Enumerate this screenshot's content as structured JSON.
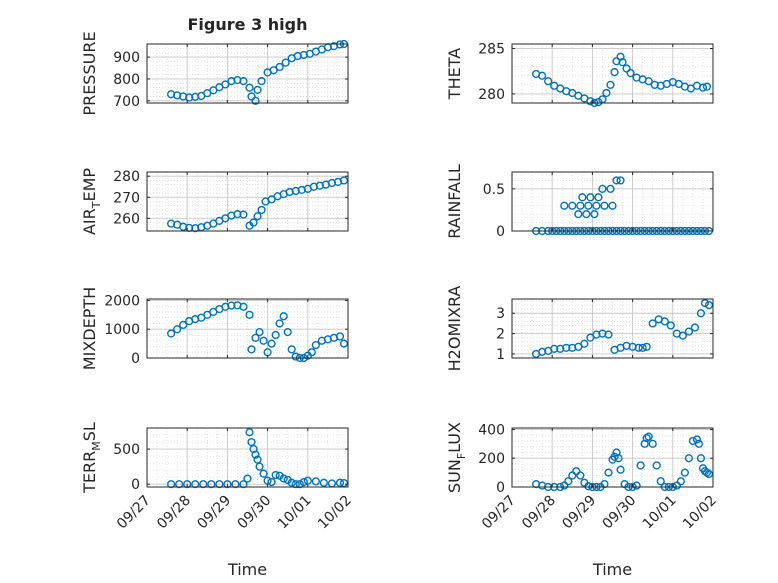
{
  "figure": {
    "title": "Figure 3 high",
    "x_label": "Time",
    "x_tick_labels": [
      "09/27",
      "09/28",
      "09/29",
      "09/30",
      "10/01",
      "10/02"
    ],
    "marker_color": "#0072BD",
    "grid_color": "#d9d9d9"
  },
  "chart_data": [
    {
      "type": "scatter",
      "title": "Figure 3 high",
      "ylabel": "PRESSURE",
      "xlim": [
        0,
        5
      ],
      "ylim": [
        690,
        960
      ],
      "yticks": [
        700,
        800,
        900
      ],
      "grid": true,
      "x": [
        0.6,
        0.75,
        0.9,
        1.05,
        1.2,
        1.35,
        1.5,
        1.65,
        1.8,
        1.95,
        2.1,
        2.25,
        2.4,
        2.55,
        2.6,
        2.7,
        2.75,
        2.85,
        3.0,
        3.15,
        3.3,
        3.45,
        3.6,
        3.75,
        3.9,
        4.05,
        4.2,
        4.35,
        4.5,
        4.65,
        4.8,
        4.9
      ],
      "y": [
        730,
        725,
        720,
        715,
        718,
        722,
        735,
        748,
        762,
        775,
        790,
        795,
        790,
        760,
        720,
        700,
        750,
        790,
        830,
        840,
        855,
        875,
        895,
        905,
        910,
        915,
        925,
        935,
        945,
        950,
        958,
        960
      ]
    },
    {
      "type": "scatter",
      "title": "",
      "ylabel": "THETA",
      "xlim": [
        0,
        5
      ],
      "ylim": [
        279,
        285.5
      ],
      "yticks": [
        280,
        285
      ],
      "grid": true,
      "x": [
        0.6,
        0.75,
        0.9,
        1.05,
        1.2,
        1.35,
        1.5,
        1.65,
        1.8,
        1.95,
        2.05,
        2.15,
        2.25,
        2.35,
        2.45,
        2.55,
        2.6,
        2.7,
        2.75,
        2.85,
        2.95,
        3.1,
        3.25,
        3.4,
        3.55,
        3.7,
        3.85,
        4.0,
        4.15,
        4.3,
        4.45,
        4.6,
        4.75,
        4.85
      ],
      "y": [
        282.2,
        282.0,
        281.4,
        280.9,
        280.6,
        280.3,
        280.1,
        279.8,
        279.5,
        279.2,
        279.0,
        279.1,
        279.4,
        280.1,
        281.0,
        282.4,
        283.6,
        284.1,
        283.5,
        282.8,
        282.3,
        281.8,
        281.6,
        281.4,
        281.0,
        280.9,
        281.1,
        281.3,
        281.1,
        280.8,
        280.6,
        280.9,
        280.7,
        280.8
      ]
    },
    {
      "type": "scatter",
      "title": "",
      "ylabel": "AIR_TEMP",
      "xlim": [
        0,
        5
      ],
      "ylim": [
        254,
        282
      ],
      "yticks": [
        260,
        270,
        280
      ],
      "grid": true,
      "x": [
        0.6,
        0.75,
        0.9,
        1.05,
        1.2,
        1.35,
        1.5,
        1.65,
        1.8,
        1.95,
        2.1,
        2.25,
        2.4,
        2.55,
        2.65,
        2.75,
        2.85,
        2.95,
        3.1,
        3.25,
        3.4,
        3.55,
        3.7,
        3.85,
        4.0,
        4.15,
        4.3,
        4.45,
        4.6,
        4.75,
        4.9
      ],
      "y": [
        257.5,
        257,
        256,
        255.5,
        255.3,
        255.8,
        256.5,
        257.5,
        258.8,
        260,
        261.3,
        262,
        261.8,
        256.5,
        258,
        261,
        264,
        268,
        269,
        270.5,
        271.5,
        272.5,
        273,
        273.5,
        274,
        275,
        275.5,
        276,
        276.8,
        277.3,
        278
      ]
    },
    {
      "type": "scatter",
      "title": "",
      "ylabel": "RAINFALL",
      "xlim": [
        0,
        5
      ],
      "ylim": [
        0,
        0.7
      ],
      "yticks": [
        0,
        0.5
      ],
      "grid": true,
      "x": [
        0.6,
        0.75,
        0.9,
        1.0,
        1.1,
        1.2,
        1.3,
        1.4,
        1.5,
        1.6,
        1.7,
        1.8,
        1.9,
        2.0,
        2.1,
        2.2,
        2.3,
        2.4,
        2.5,
        2.6,
        2.7,
        2.8,
        2.9,
        3.0,
        3.1,
        3.2,
        3.3,
        3.4,
        3.5,
        3.6,
        3.7,
        3.8,
        3.9,
        4.0,
        4.1,
        4.2,
        4.3,
        4.4,
        4.5,
        4.6,
        4.7,
        4.8,
        4.9,
        1.3,
        1.5,
        1.7,
        1.9,
        2.1,
        2.3,
        2.5,
        1.75,
        1.95,
        2.15,
        1.65,
        1.85,
        2.05,
        2.25,
        2.45,
        2.6,
        2.7
      ],
      "y": [
        0,
        0,
        0,
        0,
        0,
        0,
        0,
        0,
        0,
        0,
        0,
        0,
        0,
        0,
        0,
        0,
        0,
        0,
        0,
        0,
        0,
        0,
        0,
        0,
        0,
        0,
        0,
        0,
        0,
        0,
        0,
        0,
        0,
        0,
        0,
        0,
        0,
        0,
        0,
        0,
        0,
        0,
        0,
        0.3,
        0.3,
        0.3,
        0.3,
        0.3,
        0.3,
        0.3,
        0.4,
        0.4,
        0.4,
        0.2,
        0.2,
        0.2,
        0.5,
        0.5,
        0.6,
        0.6
      ]
    },
    {
      "type": "scatter",
      "title": "",
      "ylabel": "MIXDEPTH",
      "xlim": [
        0,
        5
      ],
      "ylim": [
        0,
        2050
      ],
      "yticks": [
        0,
        1000,
        2000
      ],
      "grid": true,
      "x": [
        0.6,
        0.75,
        0.9,
        1.05,
        1.2,
        1.35,
        1.5,
        1.65,
        1.8,
        1.95,
        2.1,
        2.25,
        2.4,
        2.55,
        2.6,
        2.7,
        2.8,
        2.9,
        3.0,
        3.1,
        3.2,
        3.3,
        3.4,
        3.5,
        3.6,
        3.7,
        3.8,
        3.9,
        4.0,
        4.1,
        4.2,
        4.35,
        4.5,
        4.65,
        4.8,
        4.9
      ],
      "y": [
        850,
        1000,
        1150,
        1280,
        1350,
        1400,
        1500,
        1600,
        1700,
        1780,
        1820,
        1830,
        1780,
        1500,
        300,
        700,
        900,
        600,
        200,
        500,
        800,
        1200,
        1450,
        900,
        300,
        50,
        0,
        0,
        80,
        200,
        450,
        600,
        650,
        700,
        750,
        500
      ]
    },
    {
      "type": "scatter",
      "title": "",
      "ylabel": "H2OMIXRA",
      "xlim": [
        0,
        5
      ],
      "ylim": [
        0.8,
        3.7
      ],
      "yticks": [
        1,
        2,
        3
      ],
      "grid": true,
      "x": [
        0.6,
        0.75,
        0.9,
        1.05,
        1.2,
        1.35,
        1.5,
        1.65,
        1.8,
        1.95,
        2.1,
        2.25,
        2.4,
        2.55,
        2.7,
        2.85,
        3.0,
        3.15,
        3.25,
        3.35,
        3.5,
        3.65,
        3.8,
        3.95,
        4.1,
        4.25,
        4.4,
        4.55,
        4.7,
        4.8,
        4.9
      ],
      "y": [
        1.0,
        1.1,
        1.15,
        1.25,
        1.25,
        1.3,
        1.3,
        1.35,
        1.5,
        1.8,
        1.95,
        2.0,
        1.95,
        1.2,
        1.3,
        1.4,
        1.35,
        1.3,
        1.3,
        1.35,
        2.5,
        2.7,
        2.6,
        2.4,
        2.0,
        1.9,
        2.1,
        2.3,
        3.0,
        3.5,
        3.4
      ]
    },
    {
      "type": "scatter",
      "title": "",
      "ylabel": "TERR_MSL",
      "xlim": [
        0,
        5
      ],
      "ylim": [
        -40,
        800
      ],
      "yticks": [
        0,
        500
      ],
      "grid": true,
      "x": [
        0.6,
        0.8,
        1.0,
        1.2,
        1.4,
        1.6,
        1.8,
        2.0,
        2.2,
        2.4,
        2.5,
        2.55,
        2.6,
        2.65,
        2.7,
        2.75,
        2.8,
        2.9,
        3.0,
        3.1,
        3.2,
        3.3,
        3.4,
        3.5,
        3.6,
        3.7,
        3.8,
        3.9,
        4.0,
        4.2,
        4.4,
        4.6,
        4.8,
        4.9
      ],
      "y": [
        0,
        0,
        0,
        0,
        0,
        0,
        0,
        0,
        0,
        0,
        80,
        740,
        600,
        500,
        420,
        350,
        250,
        150,
        50,
        30,
        130,
        120,
        80,
        60,
        20,
        0,
        0,
        30,
        50,
        40,
        20,
        10,
        20,
        15
      ]
    },
    {
      "type": "scatter",
      "title": "",
      "ylabel": "SUN_FLUX",
      "xlim": [
        0,
        5
      ],
      "ylim": [
        0,
        410
      ],
      "yticks": [
        0,
        200,
        400
      ],
      "grid": true,
      "x": [
        0.6,
        0.75,
        0.9,
        1.05,
        1.2,
        1.3,
        1.4,
        1.5,
        1.6,
        1.7,
        1.8,
        1.9,
        2.0,
        2.1,
        2.2,
        2.3,
        2.4,
        2.5,
        2.55,
        2.6,
        2.65,
        2.7,
        2.8,
        2.9,
        3.0,
        3.1,
        3.2,
        3.3,
        3.35,
        3.4,
        3.5,
        3.6,
        3.7,
        3.8,
        3.9,
        4.0,
        4.1,
        4.2,
        4.3,
        4.4,
        4.5,
        4.6,
        4.65,
        4.7,
        4.75,
        4.8,
        4.85,
        4.9
      ],
      "y": [
        20,
        10,
        0,
        0,
        0,
        10,
        40,
        80,
        110,
        80,
        30,
        5,
        0,
        0,
        0,
        20,
        100,
        190,
        210,
        240,
        200,
        120,
        20,
        0,
        0,
        10,
        150,
        300,
        340,
        350,
        300,
        150,
        40,
        0,
        0,
        0,
        10,
        40,
        100,
        200,
        320,
        330,
        300,
        200,
        130,
        110,
        100,
        90
      ]
    }
  ]
}
